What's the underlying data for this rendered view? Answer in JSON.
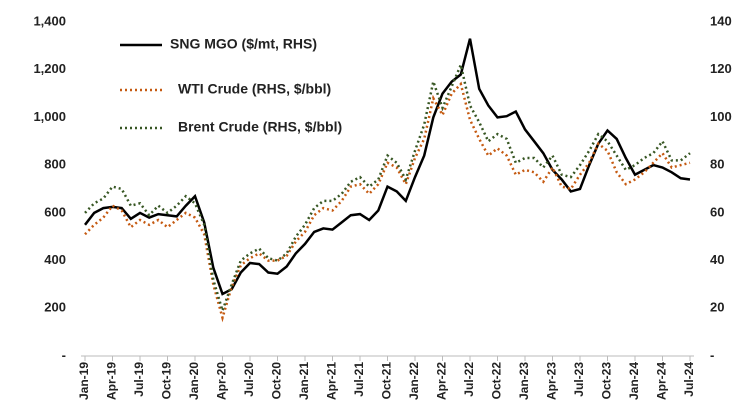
{
  "chart_data": {
    "type": "line",
    "categories": [
      "Jan-19",
      null,
      null,
      "Apr-19",
      null,
      null,
      "Jul-19",
      null,
      null,
      "Oct-19",
      null,
      null,
      "Jan-20",
      null,
      null,
      "Apr-20",
      null,
      null,
      "Jul-20",
      null,
      null,
      "Oct-20",
      null,
      null,
      "Jan-21",
      null,
      null,
      "Apr-21",
      null,
      null,
      "Jul-21",
      null,
      null,
      "Oct-21",
      null,
      null,
      "Jan-22",
      null,
      null,
      "Apr-22",
      null,
      null,
      "Jul-22",
      null,
      null,
      "Oct-22",
      null,
      null,
      "Jan-23",
      null,
      null,
      "Apr-23",
      null,
      null,
      "Jul-23",
      null,
      null,
      "Oct-23",
      null,
      null,
      "Jan-24",
      null,
      null,
      "Apr-24",
      null,
      null,
      "Jul-24"
    ],
    "series": [
      {
        "name": "SNG MGO ($/mt, RHS)",
        "color": "#000000",
        "style": "solid",
        "values": [
          550,
          600,
          620,
          625,
          620,
          575,
          600,
          580,
          595,
          590,
          585,
          630,
          670,
          560,
          370,
          260,
          280,
          350,
          390,
          385,
          350,
          345,
          375,
          430,
          470,
          520,
          535,
          530,
          560,
          590,
          595,
          570,
          610,
          710,
          690,
          650,
          750,
          840,
          1000,
          1100,
          1150,
          1180,
          1330,
          1120,
          1050,
          1000,
          1005,
          1025,
          950,
          900,
          850,
          780,
          740,
          690,
          700,
          800,
          890,
          945,
          910,
          830,
          760,
          780,
          800,
          790,
          770,
          745,
          740
        ]
      },
      {
        "name": "WTI Crude (RHS, $/bbl)",
        "color": "#c55a11",
        "style": "dotted",
        "axis": "y2",
        "values": [
          51,
          55,
          58,
          63,
          61,
          54,
          57,
          55,
          57,
          54,
          57,
          60,
          58,
          51,
          30,
          16,
          29,
          38,
          41,
          43,
          40,
          40,
          42,
          48,
          52,
          59,
          62,
          61,
          65,
          71,
          72,
          68,
          72,
          81,
          79,
          72,
          83,
          91,
          108,
          101,
          110,
          114,
          99,
          91,
          84,
          87,
          84,
          76,
          78,
          77,
          73,
          79,
          71,
          70,
          76,
          81,
          89,
          86,
          77,
          72,
          74,
          77,
          81,
          85,
          79,
          80,
          81
        ]
      },
      {
        "name": "Brent Crude (RHS, $/bbl)",
        "color": "#375623",
        "style": "dotted",
        "axis": "y2",
        "values": [
          60,
          64,
          66,
          71,
          70,
          63,
          64,
          59,
          63,
          60,
          63,
          67,
          64,
          55,
          32,
          19,
          30,
          40,
          43,
          45,
          41,
          40,
          43,
          50,
          55,
          62,
          65,
          65,
          68,
          73,
          75,
          71,
          74,
          84,
          81,
          74,
          86,
          97,
          115,
          104,
          113,
          122,
          105,
          98,
          90,
          93,
          91,
          81,
          83,
          83,
          79,
          84,
          76,
          75,
          80,
          86,
          93,
          90,
          84,
          78,
          80,
          83,
          85,
          90,
          82,
          82,
          85
        ]
      }
    ],
    "ylim": [
      0,
      1400
    ],
    "yticks": [
      {
        "value": 0,
        "label": "-"
      },
      200,
      400,
      600,
      800,
      {
        "value": 1000,
        "label": "1,000"
      },
      {
        "value": 1200,
        "label": "1,200"
      },
      {
        "value": 1400,
        "label": "1,400"
      }
    ],
    "y2lim": [
      0,
      140
    ],
    "y2ticks": [
      {
        "value": 0,
        "label": "-"
      },
      20,
      40,
      60,
      80,
      100,
      120,
      140
    ],
    "grid": false,
    "legend": "upper left"
  }
}
